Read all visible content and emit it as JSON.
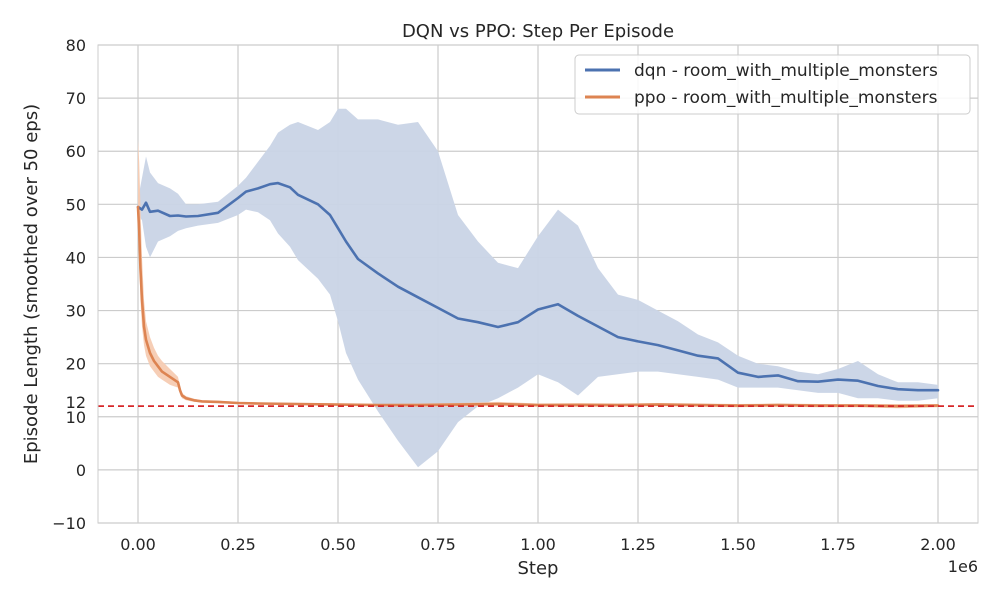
{
  "chart_data": {
    "type": "line",
    "title": "DQN vs PPO: Step Per Episode",
    "xlabel": "Step",
    "ylabel": "Episode Length (smoothed over 50 eps)",
    "x_scale_label": "1e6",
    "xlim": [
      -0.1,
      2.1
    ],
    "ylim": [
      -10,
      80
    ],
    "x_ticks": [
      0.0,
      0.25,
      0.5,
      0.75,
      1.0,
      1.25,
      1.5,
      1.75,
      2.0
    ],
    "x_tick_labels": [
      "0.00",
      "0.25",
      "0.50",
      "0.75",
      "1.00",
      "1.25",
      "1.50",
      "1.75",
      "2.00"
    ],
    "y_ticks": [
      -10,
      0,
      10,
      20,
      30,
      40,
      50,
      60,
      70,
      80
    ],
    "y_tick_labels": [
      "−10",
      "0",
      "10",
      "20",
      "30",
      "40",
      "50",
      "60",
      "70",
      "80"
    ],
    "grid": true,
    "legend_position": "top-right",
    "reference_line": {
      "y": 12,
      "label": "12",
      "color": "#d62728",
      "style": "dashed"
    },
    "series": [
      {
        "name": "dqn - room_with_multiple_monsters",
        "color": "#4c72b0",
        "band_color": "#c9d4e6",
        "x": [
          0.0,
          0.01,
          0.02,
          0.03,
          0.05,
          0.08,
          0.1,
          0.12,
          0.15,
          0.2,
          0.25,
          0.27,
          0.3,
          0.33,
          0.35,
          0.38,
          0.4,
          0.45,
          0.48,
          0.5,
          0.52,
          0.55,
          0.6,
          0.65,
          0.7,
          0.75,
          0.8,
          0.85,
          0.9,
          0.95,
          1.0,
          1.05,
          1.1,
          1.15,
          1.2,
          1.25,
          1.3,
          1.35,
          1.4,
          1.45,
          1.5,
          1.55,
          1.6,
          1.65,
          1.7,
          1.75,
          1.8,
          1.85,
          1.9,
          1.95,
          2.0
        ],
        "mean": [
          49.5,
          49.0,
          50.3,
          48.6,
          48.8,
          47.8,
          47.9,
          47.7,
          47.8,
          48.4,
          51.2,
          52.4,
          53.0,
          53.8,
          54.0,
          53.2,
          51.8,
          50.0,
          48.0,
          45.5,
          43.0,
          39.7,
          37.0,
          34.5,
          32.5,
          30.5,
          28.5,
          27.8,
          26.9,
          27.8,
          30.2,
          31.2,
          29.0,
          27.0,
          25.0,
          24.2,
          23.5,
          22.5,
          21.5,
          21.0,
          18.3,
          17.5,
          17.8,
          16.7,
          16.6,
          17.0,
          16.8,
          15.8,
          15.2,
          15.0,
          15.0
        ],
        "lower": [
          48.0,
          47.0,
          42.0,
          40.0,
          43.0,
          44.0,
          45.0,
          45.5,
          46.0,
          46.5,
          48.0,
          49.0,
          48.5,
          47.0,
          44.5,
          42.0,
          39.5,
          36.0,
          33.0,
          28.0,
          22.0,
          17.0,
          11.0,
          5.5,
          0.5,
          3.5,
          9.0,
          12.0,
          13.5,
          15.5,
          18.0,
          16.5,
          14.0,
          17.5,
          18.0,
          18.5,
          18.5,
          18.0,
          17.5,
          17.0,
          15.5,
          15.5,
          15.5,
          15.0,
          14.5,
          14.5,
          13.5,
          13.5,
          13.0,
          13.0,
          13.5
        ],
        "upper": [
          51.0,
          55.0,
          59.0,
          56.0,
          54.0,
          53.0,
          52.0,
          50.0,
          50.0,
          50.5,
          53.5,
          55.0,
          58.0,
          61.0,
          63.5,
          65.0,
          65.5,
          64.0,
          65.5,
          68.0,
          68.0,
          66.0,
          66.0,
          65.0,
          65.5,
          60.0,
          48.0,
          43.0,
          39.0,
          38.0,
          44.0,
          49.0,
          46.0,
          38.0,
          33.0,
          32.0,
          30.0,
          28.0,
          25.5,
          24.0,
          21.5,
          20.0,
          19.5,
          18.5,
          18.0,
          19.0,
          20.5,
          18.0,
          16.5,
          16.5,
          16.0
        ]
      },
      {
        "name": "ppo - room_with_multiple_monsters",
        "color": "#dd8452",
        "band_color": "#f6cbb2",
        "x": [
          0.0,
          0.003,
          0.006,
          0.01,
          0.015,
          0.02,
          0.03,
          0.04,
          0.05,
          0.06,
          0.08,
          0.1,
          0.105,
          0.11,
          0.12,
          0.14,
          0.16,
          0.2,
          0.25,
          0.3,
          0.4,
          0.5,
          0.6,
          0.7,
          0.8,
          0.9,
          1.0,
          1.1,
          1.2,
          1.3,
          1.4,
          1.5,
          1.6,
          1.7,
          1.8,
          1.9,
          2.0
        ],
        "mean": [
          49.5,
          45.0,
          38.0,
          32.0,
          27.0,
          24.5,
          22.0,
          20.5,
          19.5,
          18.5,
          17.5,
          16.5,
          15.0,
          14.0,
          13.5,
          13.1,
          12.9,
          12.8,
          12.6,
          12.5,
          12.4,
          12.3,
          12.2,
          12.2,
          12.3,
          12.4,
          12.2,
          12.2,
          12.2,
          12.3,
          12.2,
          12.1,
          12.2,
          12.1,
          12.1,
          12.0,
          12.1
        ],
        "lower": [
          48.0,
          40.0,
          32.0,
          27.0,
          23.5,
          21.5,
          19.5,
          18.5,
          17.5,
          17.0,
          16.0,
          15.5,
          14.3,
          13.5,
          13.1,
          12.8,
          12.7,
          12.6,
          12.4,
          12.3,
          12.2,
          12.1,
          12.0,
          11.9,
          12.0,
          12.0,
          11.9,
          11.9,
          11.9,
          12.0,
          11.9,
          11.8,
          11.9,
          11.8,
          11.8,
          11.6,
          11.8
        ],
        "upper": [
          62.0,
          58.0,
          50.0,
          40.0,
          32.0,
          28.0,
          25.0,
          23.0,
          21.5,
          20.5,
          19.0,
          17.5,
          15.7,
          14.5,
          13.9,
          13.4,
          13.1,
          13.0,
          12.8,
          12.7,
          12.6,
          12.5,
          12.4,
          12.5,
          12.6,
          12.8,
          12.5,
          12.6,
          12.5,
          12.6,
          12.5,
          12.4,
          12.5,
          12.4,
          12.4,
          12.4,
          12.4
        ]
      }
    ]
  }
}
